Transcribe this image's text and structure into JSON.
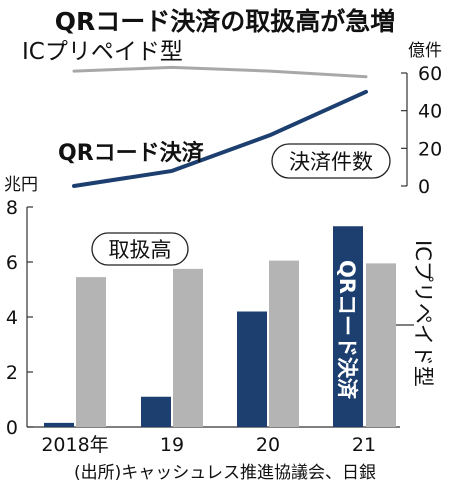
{
  "chart_data": {
    "title": "QRコード決済の取扱高が急増",
    "source": "(出所)キャッシュレス推進協議会、日銀",
    "categories": [
      "2018年",
      "19",
      "20",
      "21"
    ],
    "colors": {
      "qr": "#1c3f70",
      "ic": "#b4b4b4",
      "ic_line": "#a8a8a8",
      "axis": "#333333"
    },
    "line_chart": {
      "type": "line",
      "unit": "億件",
      "ylim": [
        0,
        60
      ],
      "yticks": [
        "0",
        "20",
        "40",
        "60"
      ],
      "label_badge": "決済件数",
      "series": [
        {
          "name": "QRコード決済",
          "values": [
            0,
            8,
            27,
            50
          ]
        },
        {
          "name": "ICプリペイド型",
          "values": [
            61,
            63,
            61,
            58
          ]
        }
      ]
    },
    "bar_chart": {
      "type": "bar",
      "unit": "兆円",
      "ylim": [
        0,
        8
      ],
      "yticks": [
        "0",
        "2",
        "4",
        "6",
        "8"
      ],
      "label_badge": "取扱高",
      "series": [
        {
          "name": "QRコード決済",
          "values": [
            0.15,
            1.1,
            4.2,
            7.3
          ]
        },
        {
          "name": "ICプリペイド型",
          "values": [
            5.45,
            5.75,
            6.05,
            5.95
          ]
        }
      ]
    }
  }
}
